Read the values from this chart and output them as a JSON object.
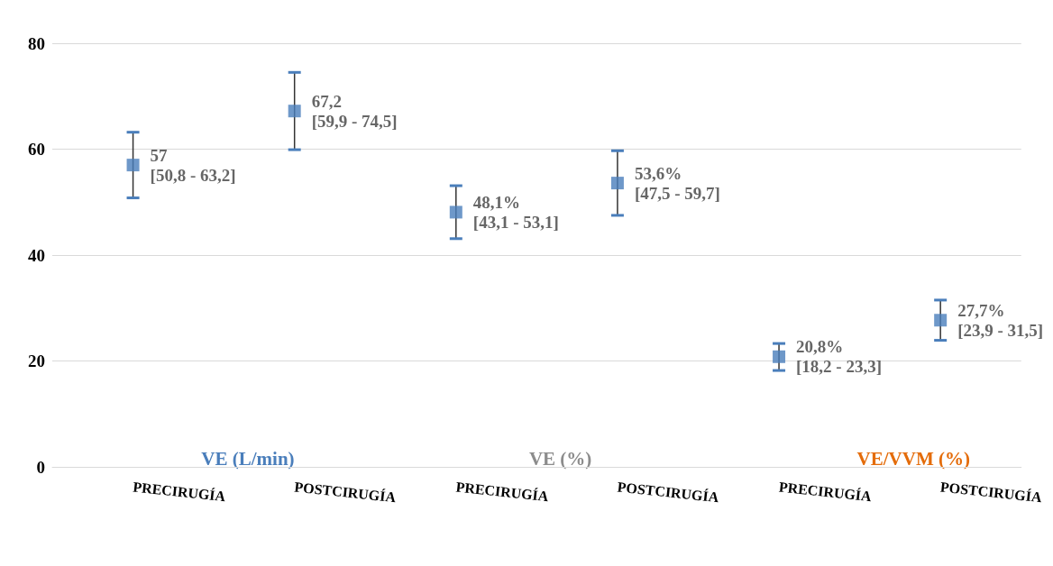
{
  "chart_data": {
    "type": "scatter",
    "categories": [
      "PRECIRUGÍA",
      "POSTCIRUGÍA",
      "PRECIRUGÍA",
      "POSTCIRUGÍA",
      "PRECIRUGÍA",
      "POSTCIRUGÍA"
    ],
    "values": [
      57,
      67.2,
      48.1,
      53.6,
      20.8,
      27.7
    ],
    "color": "#4a7ebb",
    "errors": [
      [
        50.8,
        63.2
      ],
      [
        59.9,
        74.5
      ],
      [
        43.1,
        53.1
      ],
      [
        47.5,
        59.7
      ],
      [
        18.2,
        23.3
      ],
      [
        23.9,
        31.5
      ]
    ],
    "value_labels": [
      "57\n[50,8 - 63,2]",
      "67,2\n[59,9 - 74,5]",
      "48,1%\n[43,1 - 53,1]",
      "53,6%\n[47,5 - 59,7]",
      "20,8%\n[18,2 - 23,3]",
      "27,7%\n[23,9 - 31,5]"
    ],
    "annotations": [
      "VE (L/min)",
      "VE (%)",
      "VE/VVM (%)"
    ],
    "ylim": [
      0,
      80
    ],
    "yticks": [
      0,
      20,
      40,
      60,
      80
    ],
    "grid": "y",
    "marker": "square"
  }
}
